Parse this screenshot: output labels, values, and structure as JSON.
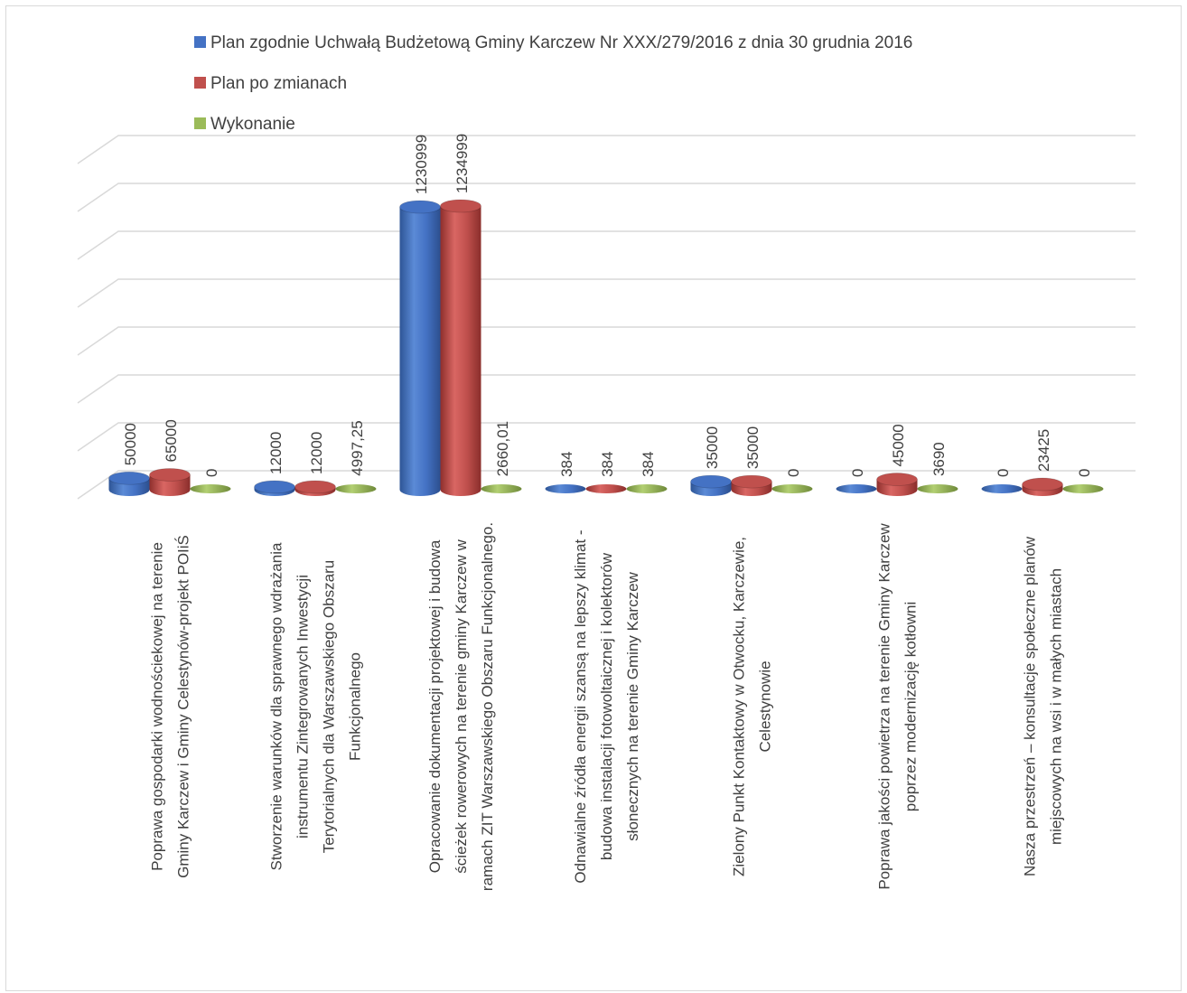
{
  "chart_data": {
    "type": "bar",
    "title": "",
    "xlabel": "",
    "ylabel": "",
    "ylim": [
      0,
      1400000
    ],
    "grid": true,
    "legend_position": "top",
    "categories": [
      [
        "Poprawa gospodarki wodnościekowej na terenie",
        "Gminy Karczew i Gminy Celestynów-projekt POIiŚ"
      ],
      [
        "Stworzenie warunków dla sprawnego wdrażania",
        "instrumentu Zintegrowanych Inwestycji",
        "Terytorialnych dla Warszawskiego Obszaru",
        "Funkcjonalnego"
      ],
      [
        "Opracowanie dokumentacji projektowej i budowa",
        "ścieżek rowerowych na terenie gminy Karczew w",
        "ramach ZIT Warszawskiego Obszaru Funkcjonalnego."
      ],
      [
        "Odnawialne źródła energii szansą na lepszy klimat -",
        "budowa instalacji fotowoltaicznej i kolektorów",
        "słonecznych na terenie Gminy Karczew"
      ],
      [
        "Zielony Punkt Kontaktowy w Otwocku, Karczewie,",
        "Celestynowie"
      ],
      [
        "Poprawa jakości powietrza na terenie Gminy Karczew",
        "poprzez modernizację kotłowni"
      ],
      [
        "Nasza przestrzeń – konsultacje społeczne planów",
        "miejscowych na wsi i w małych miastach"
      ]
    ],
    "series": [
      {
        "name": "Plan zgodnie Uchwałą Budżetową  Gminy Karczew Nr XXX/279/2016 z dnia 30 grudnia 2016",
        "color": "#4472c4",
        "values": [
          50000,
          12000,
          1230999,
          384,
          35000,
          0,
          0
        ],
        "labels": [
          "50000",
          "12000",
          "1230999",
          "384",
          "35000",
          "0",
          "0"
        ]
      },
      {
        "name": "Plan po zmianach",
        "color": "#c0504d",
        "values": [
          65000,
          12000,
          1234999,
          384,
          35000,
          45000,
          23425
        ],
        "labels": [
          "65000",
          "12000",
          "1234999",
          "384",
          "35000",
          "45000",
          "23425"
        ]
      },
      {
        "name": "Wykonanie",
        "color": "#9bbb59",
        "values": [
          0,
          4997.25,
          2660.01,
          384,
          0,
          3690,
          0
        ],
        "labels": [
          "0",
          "4997,25",
          "2660,01",
          "384",
          "0",
          "3690",
          "0"
        ]
      }
    ]
  }
}
